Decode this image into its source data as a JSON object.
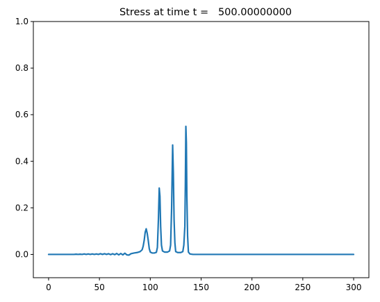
{
  "chart_data": {
    "type": "line",
    "title": "Stress at time t =   500.00000000",
    "xlabel": "",
    "ylabel": "",
    "xlim": [
      -15,
      315
    ],
    "ylim": [
      -0.1,
      1.0
    ],
    "xticks": [
      0,
      50,
      100,
      150,
      200,
      250,
      300
    ],
    "yticks": [
      0.0,
      0.2,
      0.4,
      0.6,
      0.8,
      1.0
    ],
    "xtick_labels": [
      "0",
      "50",
      "100",
      "150",
      "200",
      "250",
      "300"
    ],
    "ytick_labels": [
      "0.0",
      "0.2",
      "0.4",
      "0.6",
      "0.8",
      "1.0"
    ],
    "grid": false,
    "legend": false,
    "series": [
      {
        "color": "#1f77b4",
        "x": [
          0,
          20,
          25,
          27,
          29,
          31,
          33,
          35,
          37,
          39,
          41,
          43,
          45,
          47,
          49,
          51,
          53,
          55,
          57,
          59,
          61,
          63,
          65,
          67,
          69,
          71,
          73,
          75,
          77,
          79,
          81,
          84,
          87,
          90,
          92,
          93,
          94,
          95,
          96,
          97,
          98,
          99,
          100,
          102,
          104,
          106,
          107,
          108,
          108.8,
          109.5,
          110.2,
          111,
          112,
          114,
          117,
          119,
          120,
          121,
          122,
          122.7,
          123.4,
          124.2,
          125,
          127,
          130,
          132,
          133,
          134,
          134.5,
          135,
          135.5,
          136,
          136.7,
          137.5,
          139,
          142,
          150,
          200,
          250,
          300
        ],
        "y": [
          0.0,
          0.0,
          0.0,
          0.001,
          0.0,
          0.001,
          0.0,
          0.002,
          0.0,
          0.002,
          0.0,
          0.002,
          0.0,
          0.002,
          0.0,
          0.003,
          0.0,
          0.003,
          0.0,
          0.003,
          -0.001,
          0.003,
          -0.001,
          0.004,
          -0.002,
          0.004,
          -0.002,
          0.005,
          -0.002,
          -0.003,
          0.003,
          0.006,
          0.008,
          0.012,
          0.02,
          0.035,
          0.06,
          0.095,
          0.11,
          0.09,
          0.06,
          0.025,
          0.01,
          0.006,
          0.006,
          0.009,
          0.03,
          0.15,
          0.285,
          0.25,
          0.12,
          0.04,
          0.015,
          0.01,
          0.01,
          0.015,
          0.04,
          0.2,
          0.47,
          0.35,
          0.15,
          0.05,
          0.012,
          0.008,
          0.008,
          0.012,
          0.04,
          0.12,
          0.3,
          0.55,
          0.48,
          0.25,
          0.08,
          0.01,
          0.002,
          0.0,
          0.0,
          0.0,
          0.0,
          0.0
        ]
      }
    ]
  }
}
